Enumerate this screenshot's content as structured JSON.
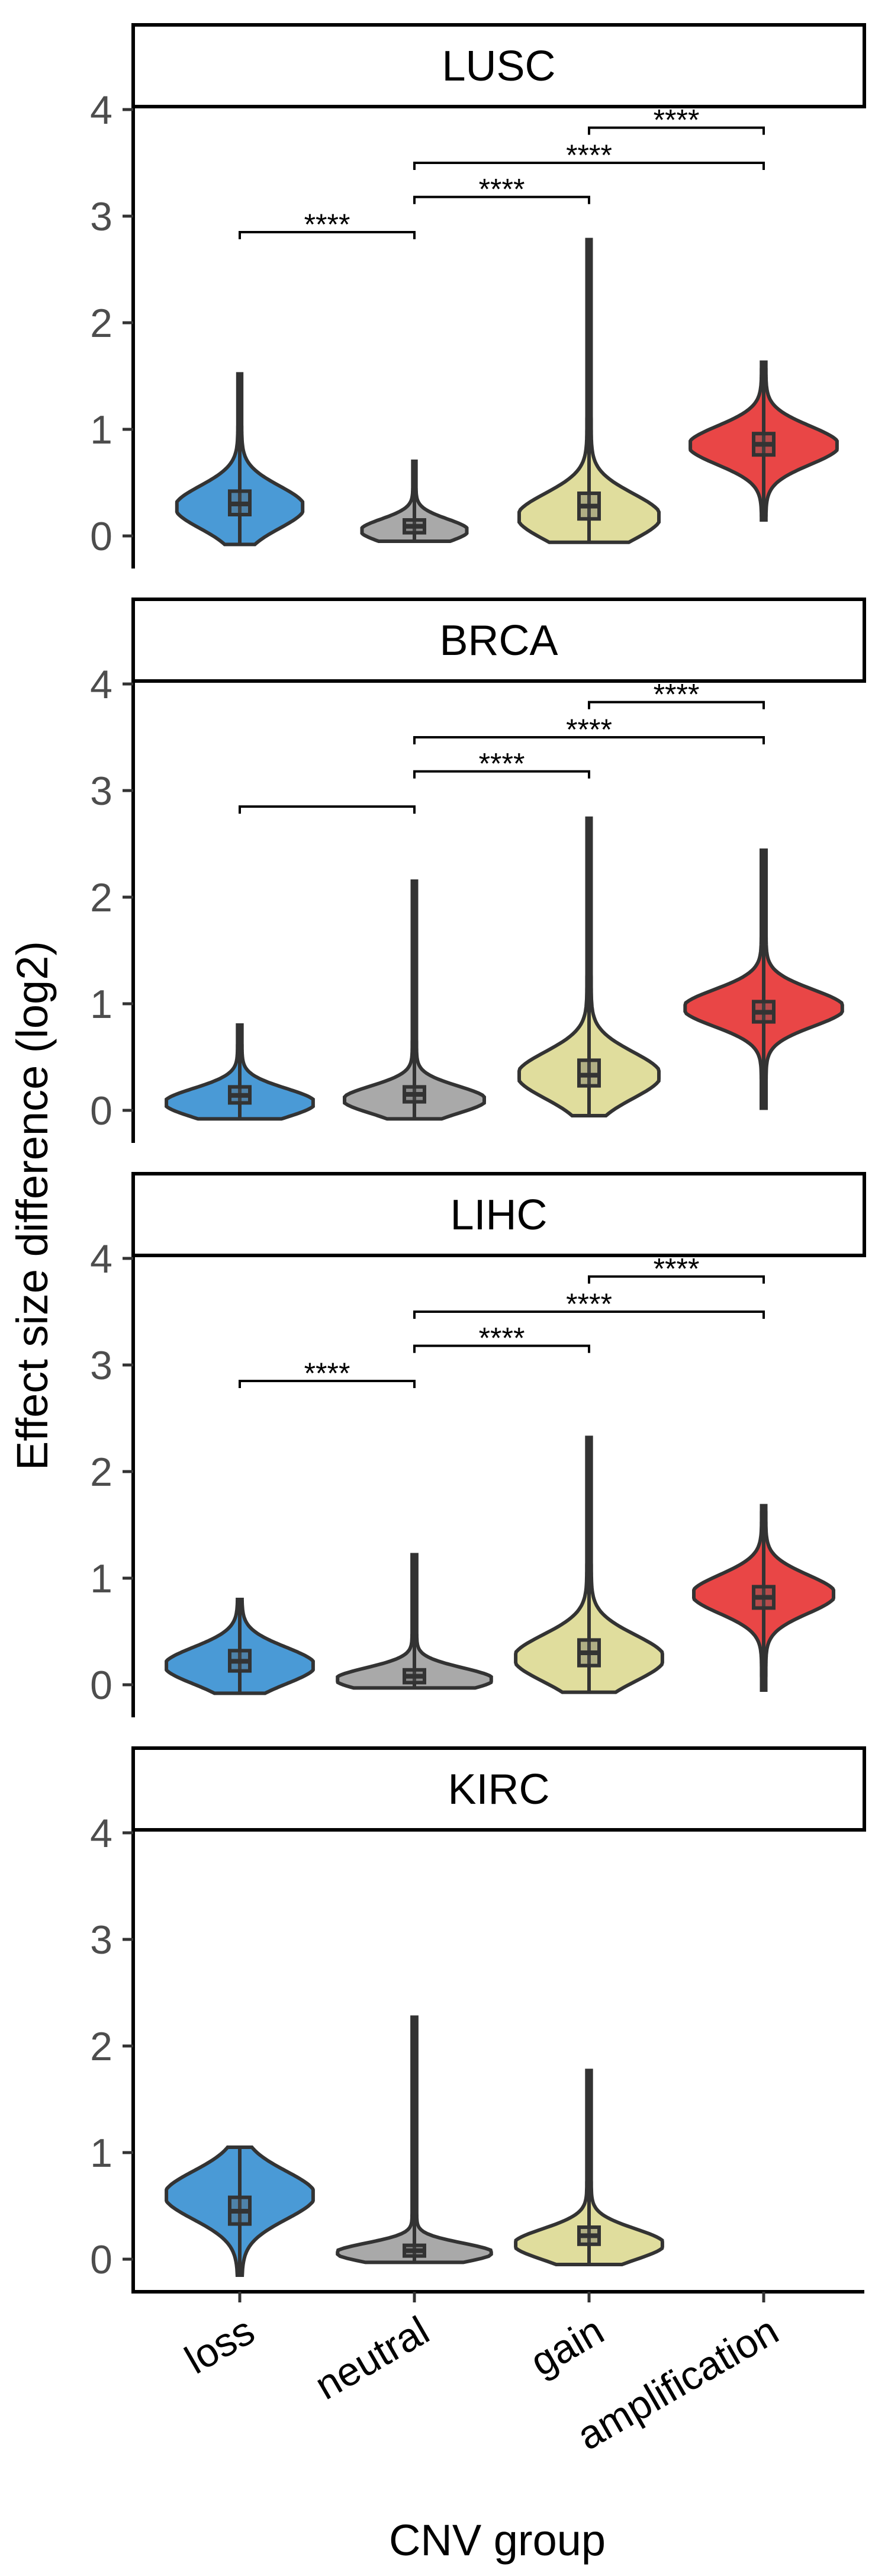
{
  "chart_data": {
    "type": "violin",
    "xlabel": "CNV group",
    "ylabel": "Effect size difference (log2)",
    "categories": [
      "loss",
      "neutral",
      "gain",
      "amplification"
    ],
    "colors": {
      "loss": "#4a9ad6",
      "neutral": "#a9a9a9",
      "gain": "#e0dd9d",
      "amplification": "#e94646"
    },
    "ylim": [
      -0.3,
      4.3
    ],
    "yticks": [
      0,
      1,
      2,
      3,
      4
    ],
    "grid": false,
    "panels": [
      {
        "title": "LUSC",
        "groups": [
          {
            "category": "loss",
            "min": -0.08,
            "max": 1.52,
            "q1": 0.2,
            "median": 0.3,
            "q3": 0.42,
            "mode": 0.27,
            "halfwidth": 0.36
          },
          {
            "category": "neutral",
            "min": -0.05,
            "max": 0.7,
            "q1": 0.03,
            "median": 0.09,
            "q3": 0.15,
            "mode": 0.05,
            "halfwidth": 0.3
          },
          {
            "category": "gain",
            "min": -0.06,
            "max": 2.78,
            "q1": 0.16,
            "median": 0.28,
            "q3": 0.4,
            "mode": 0.18,
            "halfwidth": 0.4
          },
          {
            "category": "amplification",
            "min": 0.15,
            "max": 1.63,
            "q1": 0.76,
            "median": 0.86,
            "q3": 0.96,
            "mode": 0.85,
            "halfwidth": 0.42
          }
        ],
        "comparisons": [
          {
            "from": "loss",
            "to": "neutral",
            "y": 2.85,
            "label": "****"
          },
          {
            "from": "neutral",
            "to": "gain",
            "y": 3.18,
            "label": "****"
          },
          {
            "from": "neutral",
            "to": "amplification",
            "y": 3.5,
            "label": "****"
          },
          {
            "from": "gain",
            "to": "amplification",
            "y": 3.83,
            "label": "****"
          }
        ]
      },
      {
        "title": "BRCA",
        "groups": [
          {
            "category": "loss",
            "min": -0.08,
            "max": 0.8,
            "q1": 0.07,
            "median": 0.14,
            "q3": 0.22,
            "mode": 0.07,
            "halfwidth": 0.42
          },
          {
            "category": "neutral",
            "min": -0.08,
            "max": 2.15,
            "q1": 0.08,
            "median": 0.15,
            "q3": 0.22,
            "mode": 0.1,
            "halfwidth": 0.4
          },
          {
            "category": "gain",
            "min": -0.05,
            "max": 2.74,
            "q1": 0.23,
            "median": 0.33,
            "q3": 0.47,
            "mode": 0.33,
            "halfwidth": 0.4
          },
          {
            "category": "amplification",
            "min": 0.02,
            "max": 2.44,
            "q1": 0.83,
            "median": 0.92,
            "q3": 1.02,
            "mode": 0.96,
            "halfwidth": 0.45
          }
        ],
        "comparisons": [
          {
            "from": "loss",
            "to": "neutral",
            "y": 2.85,
            "label": ""
          },
          {
            "from": "neutral",
            "to": "gain",
            "y": 3.18,
            "label": "****"
          },
          {
            "from": "neutral",
            "to": "amplification",
            "y": 3.5,
            "label": "****"
          },
          {
            "from": "gain",
            "to": "amplification",
            "y": 3.83,
            "label": "****"
          }
        ]
      },
      {
        "title": "LIHC",
        "groups": [
          {
            "category": "loss",
            "min": -0.08,
            "max": 0.8,
            "q1": 0.13,
            "median": 0.22,
            "q3": 0.32,
            "mode": 0.18,
            "halfwidth": 0.42
          },
          {
            "category": "neutral",
            "min": -0.03,
            "max": 1.22,
            "q1": 0.02,
            "median": 0.08,
            "q3": 0.14,
            "mode": 0.05,
            "halfwidth": 0.44
          },
          {
            "category": "gain",
            "min": -0.07,
            "max": 2.32,
            "q1": 0.18,
            "median": 0.3,
            "q3": 0.42,
            "mode": 0.25,
            "halfwidth": 0.42
          },
          {
            "category": "amplification",
            "min": -0.05,
            "max": 1.68,
            "q1": 0.72,
            "median": 0.82,
            "q3": 0.92,
            "mode": 0.85,
            "halfwidth": 0.4
          }
        ],
        "comparisons": [
          {
            "from": "loss",
            "to": "neutral",
            "y": 2.85,
            "label": "****"
          },
          {
            "from": "neutral",
            "to": "gain",
            "y": 3.18,
            "label": "****"
          },
          {
            "from": "neutral",
            "to": "amplification",
            "y": 3.5,
            "label": "****"
          },
          {
            "from": "gain",
            "to": "amplification",
            "y": 3.83,
            "label": "****"
          }
        ]
      },
      {
        "title": "KIRC",
        "groups": [
          {
            "category": "loss",
            "min": -0.15,
            "max": 1.05,
            "q1": 0.33,
            "median": 0.45,
            "q3": 0.58,
            "mode": 0.6,
            "halfwidth": 0.42
          },
          {
            "category": "neutral",
            "min": -0.03,
            "max": 2.27,
            "q1": 0.03,
            "median": 0.08,
            "q3": 0.13,
            "mode": 0.06,
            "halfwidth": 0.44
          },
          {
            "category": "gain",
            "min": -0.05,
            "max": 1.77,
            "q1": 0.14,
            "median": 0.22,
            "q3": 0.3,
            "mode": 0.14,
            "halfwidth": 0.42
          }
        ],
        "comparisons": []
      }
    ]
  }
}
